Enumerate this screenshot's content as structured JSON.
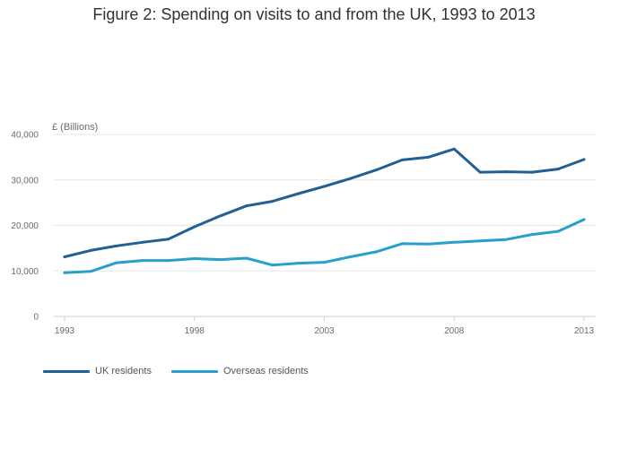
{
  "chart_data": {
    "type": "line",
    "title": "Figure 2: Spending on visits to and from the UK, 1993 to 2013",
    "ylabel": "£ (Billions)",
    "xlabel": "",
    "x": [
      1993,
      1994,
      1995,
      1996,
      1997,
      1998,
      1999,
      2000,
      2001,
      2002,
      2003,
      2004,
      2005,
      2006,
      2007,
      2008,
      2009,
      2010,
      2011,
      2012,
      2013
    ],
    "xticks": [
      1993,
      1998,
      2003,
      2008,
      2013
    ],
    "xlim": [
      1993,
      2013
    ],
    "ylim": [
      0,
      40000
    ],
    "yticks": [
      0,
      10000,
      20000,
      30000,
      40000
    ],
    "ytick_labels": [
      "0",
      "10,000",
      "20,000",
      "30,000",
      "40,000"
    ],
    "grid": true,
    "legend_position": "bottom-left",
    "series": [
      {
        "name": "UK residents",
        "color": "#206095",
        "values": [
          13100,
          14500,
          15500,
          16300,
          17000,
          19700,
          22100,
          24300,
          25300,
          27000,
          28600,
          30300,
          32200,
          34400,
          35000,
          36800,
          31700,
          31800,
          31700,
          32400,
          34500
        ]
      },
      {
        "name": "Overseas residents",
        "color": "#27a0cc",
        "values": [
          9600,
          9900,
          11800,
          12300,
          12300,
          12700,
          12500,
          12800,
          11300,
          11700,
          11900,
          13100,
          14200,
          16000,
          15900,
          16300,
          16600,
          16900,
          18000,
          18700,
          21300
        ]
      }
    ]
  }
}
